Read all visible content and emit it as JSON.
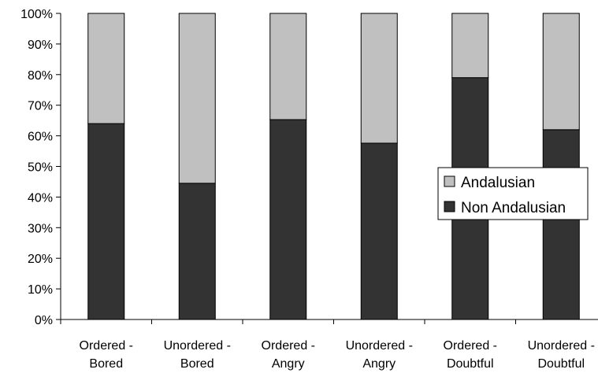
{
  "chart_data": {
    "type": "bar",
    "stacked": true,
    "percent": true,
    "categories": [
      [
        "Ordered -",
        "Bored"
      ],
      [
        "Unordered -",
        "Bored"
      ],
      [
        "Ordered -",
        "Angry"
      ],
      [
        "Unordered -",
        "Angry"
      ],
      [
        "Ordered -",
        "Doubtful"
      ],
      [
        "Unordered -",
        "Doubtful"
      ]
    ],
    "series": [
      {
        "name": "Non Andalusian",
        "color": "#333333",
        "values": [
          64,
          44.5,
          65.3,
          57.6,
          79,
          62
        ]
      },
      {
        "name": "Andalusian",
        "color": "#c0c0c0",
        "values": [
          36,
          55.5,
          34.7,
          42.4,
          21,
          38
        ]
      }
    ],
    "title": "",
    "xlabel": "",
    "ylabel": "",
    "ylim": [
      0,
      100
    ],
    "yticks": [
      "0%",
      "10%",
      "20%",
      "30%",
      "40%",
      "50%",
      "60%",
      "70%",
      "80%",
      "90%",
      "100%"
    ],
    "grid": false,
    "legend": {
      "position": "right",
      "entries": [
        "Andalusian",
        "Non Andalusian"
      ]
    }
  }
}
